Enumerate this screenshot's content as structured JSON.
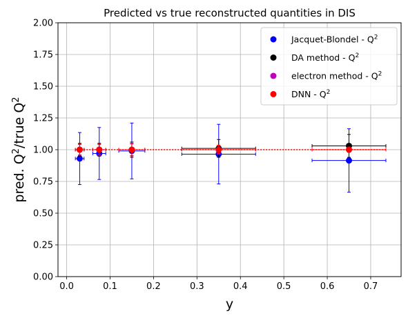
{
  "chart_data": {
    "type": "scatter",
    "title": "Predicted vs true reconstructed quantities in DIS",
    "xlabel": "y",
    "ylabel": "pred. Q²/true Q²",
    "xlim": [
      -0.02,
      0.77
    ],
    "ylim": [
      0.0,
      2.0
    ],
    "xticks": [
      "0.0",
      "0.1",
      "0.2",
      "0.3",
      "0.4",
      "0.5",
      "0.6",
      "0.7"
    ],
    "xtick_values": [
      0.0,
      0.1,
      0.2,
      0.3,
      0.4,
      0.5,
      0.6,
      0.7
    ],
    "yticks": [
      "0.00",
      "0.25",
      "0.50",
      "0.75",
      "1.00",
      "1.25",
      "1.50",
      "1.75",
      "2.00"
    ],
    "ytick_values": [
      0.0,
      0.25,
      0.5,
      0.75,
      1.0,
      1.25,
      1.5,
      1.75,
      2.0
    ],
    "grid": true,
    "legend_position": "top-right",
    "reference_line": 1.0,
    "series": [
      {
        "name": "Jacquet-Blondel - Q",
        "color": "#0000ff",
        "points": [
          {
            "x": 0.03,
            "xerr": 0.01,
            "y": 0.93,
            "yerr": 0.205
          },
          {
            "x": 0.075,
            "xerr": 0.015,
            "y": 0.97,
            "yerr": 0.205
          },
          {
            "x": 0.15,
            "xerr": 0.03,
            "y": 0.99,
            "yerr": 0.22
          },
          {
            "x": 0.35,
            "xerr": 0.085,
            "y": 0.965,
            "yerr": 0.235
          },
          {
            "x": 0.65,
            "xerr": 0.085,
            "y": 0.915,
            "yerr": 0.25
          }
        ]
      },
      {
        "name": "DA method - Q",
        "color": "#000000",
        "points": [
          {
            "x": 0.03,
            "xerr": 0.01,
            "y": 1.0,
            "yerr": 0.05
          },
          {
            "x": 0.075,
            "xerr": 0.015,
            "y": 1.0,
            "yerr": 0.05
          },
          {
            "x": 0.15,
            "xerr": 0.03,
            "y": 1.0,
            "yerr": 0.06
          },
          {
            "x": 0.35,
            "xerr": 0.085,
            "y": 1.01,
            "yerr": 0.07
          },
          {
            "x": 0.65,
            "xerr": 0.085,
            "y": 1.03,
            "yerr": 0.09
          }
        ]
      },
      {
        "name": "electron method - Q",
        "color": "#bf00bf",
        "points": [
          {
            "x": 0.03,
            "xerr": 0.01,
            "y": 1.0,
            "yerr": 0.04
          },
          {
            "x": 0.075,
            "xerr": 0.015,
            "y": 1.0,
            "yerr": 0.04
          },
          {
            "x": 0.15,
            "xerr": 0.03,
            "y": 1.0,
            "yerr": 0.045
          },
          {
            "x": 0.35,
            "xerr": 0.085,
            "y": 1.0,
            "yerr": 0.03
          },
          {
            "x": 0.65,
            "xerr": 0.085,
            "y": 1.0,
            "yerr": 0.02
          }
        ]
      },
      {
        "name": "DNN - Q",
        "color": "#ff0000",
        "points": [
          {
            "x": 0.03,
            "xerr": 0.01,
            "y": 1.0,
            "yerr": 0.045
          },
          {
            "x": 0.075,
            "xerr": 0.015,
            "y": 1.0,
            "yerr": 0.045
          },
          {
            "x": 0.15,
            "xerr": 0.03,
            "y": 1.0,
            "yerr": 0.05
          },
          {
            "x": 0.35,
            "xerr": 0.085,
            "y": 1.0,
            "yerr": 0.035
          },
          {
            "x": 0.65,
            "xerr": 0.085,
            "y": 1.0,
            "yerr": 0.02
          }
        ]
      }
    ],
    "legend_superscript": "2"
  }
}
